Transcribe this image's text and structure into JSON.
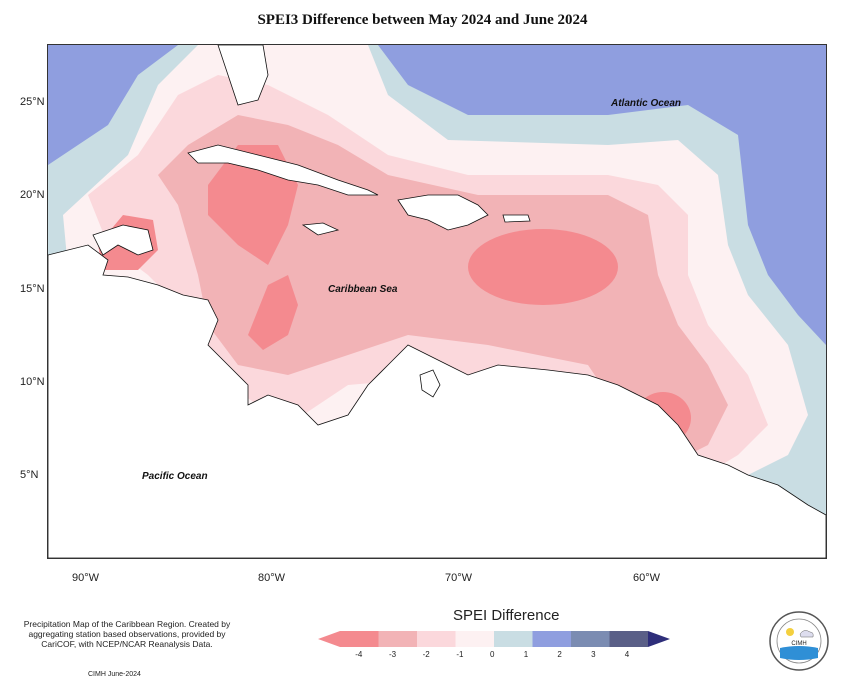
{
  "title": "SPEI3 Difference between May 2024 and June 2024",
  "latitude_labels": [
    "25°N",
    "20°N",
    "15°N",
    "10°N",
    "5°N"
  ],
  "longitude_labels": [
    "90°W",
    "80°W",
    "70°W",
    "60°W"
  ],
  "ocean_labels": {
    "atlantic": "Atlantic Ocean",
    "caribbean": "Caribbean Sea",
    "pacific": "Pacific Ocean"
  },
  "legend": {
    "title": "SPEI Difference",
    "ticks": [
      "-4",
      "-3",
      "-2",
      "-1",
      "0",
      "1",
      "2",
      "3",
      "4"
    ],
    "colors": [
      "#f48a8f",
      "#f2b3b6",
      "#fbd8dc",
      "#fdf1f2",
      "#c9dde3",
      "#8f9edf",
      "#7b8cb2",
      "#5a5f87",
      "#2e2e7a"
    ]
  },
  "footnote": "Precipitation Map of the Caribbean Region. Created by aggregating station based observations, provided by CariCOF, with NCEP/NCAR Reanalysis Data.",
  "date_note": "CIMH June-2024",
  "logo_text": "CIMH"
}
